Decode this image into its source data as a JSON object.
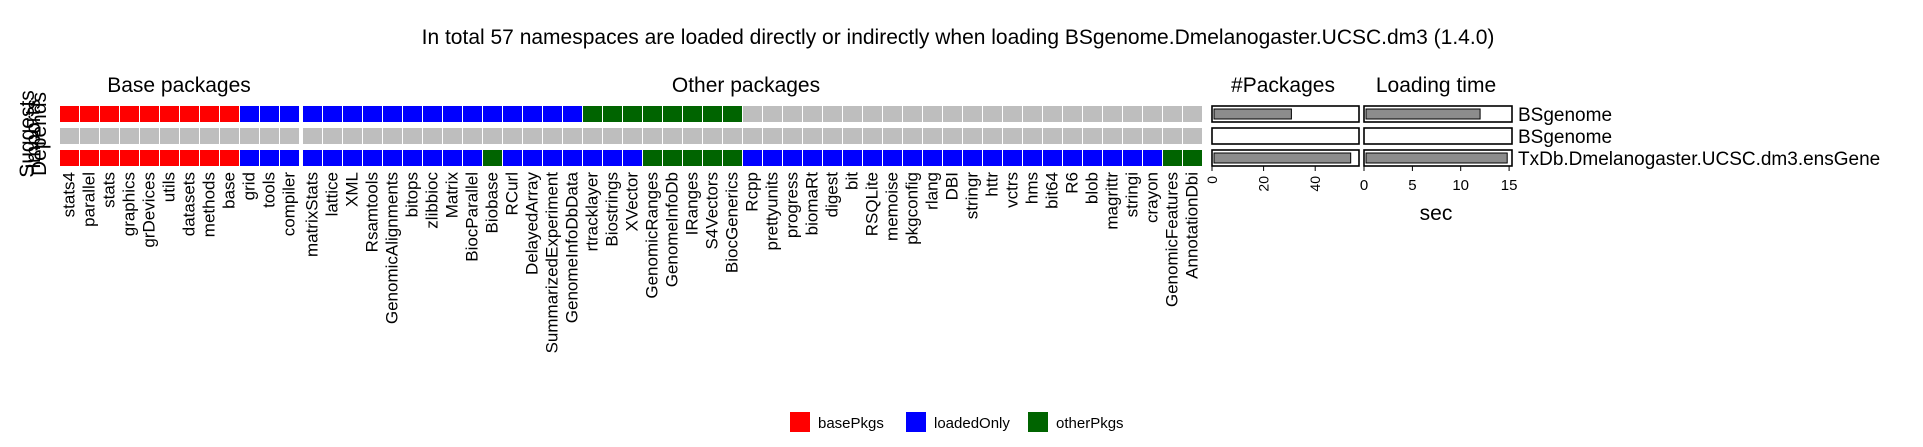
{
  "chart_data": {
    "type": "heatmap",
    "title": "In total 57 namespaces are loaded directly or indirectly when loading BSgenome.Dmelanogaster.UCSC.dm3 (1.4.0)",
    "row_labels": [
      "Depends",
      "Imports",
      "Suggests"
    ],
    "panels": {
      "base_title": "Base packages",
      "other_title": "Other packages",
      "count_title": "#Packages",
      "time_title": "Loading time"
    },
    "colors": {
      "basePkgs": "#ff0000",
      "loadedOnly": "#0000ff",
      "otherPkgs": "#006400",
      "none": "#bebebe"
    },
    "legend": {
      "position": "bottom",
      "entries": [
        {
          "key": "basePkgs",
          "label": "basePkgs"
        },
        {
          "key": "loadedOnly",
          "label": "loadedOnly"
        },
        {
          "key": "otherPkgs",
          "label": "otherPkgs"
        }
      ]
    },
    "base_packages": [
      "stats4",
      "parallel",
      "stats",
      "graphics",
      "grDevices",
      "utils",
      "datasets",
      "methods",
      "base",
      "grid",
      "tools",
      "compiler"
    ],
    "base_status": {
      "Depends": [
        "basePkgs",
        "basePkgs",
        "basePkgs",
        "basePkgs",
        "basePkgs",
        "basePkgs",
        "basePkgs",
        "basePkgs",
        "basePkgs",
        "loadedOnly",
        "loadedOnly",
        "loadedOnly"
      ],
      "Imports": [
        "none",
        "none",
        "none",
        "none",
        "none",
        "none",
        "none",
        "none",
        "none",
        "none",
        "none",
        "none"
      ],
      "Suggests": [
        "basePkgs",
        "basePkgs",
        "basePkgs",
        "basePkgs",
        "basePkgs",
        "basePkgs",
        "basePkgs",
        "basePkgs",
        "basePkgs",
        "loadedOnly",
        "loadedOnly",
        "loadedOnly"
      ]
    },
    "other_packages": [
      "matrixStats",
      "lattice",
      "XML",
      "Rsamtools",
      "GenomicAlignments",
      "bitops",
      "zlibbioc",
      "Matrix",
      "BiocParallel",
      "Biobase",
      "RCurl",
      "DelayedArray",
      "SummarizedExperiment",
      "GenomeInfoDbData",
      "rtracklayer",
      "Biostrings",
      "XVector",
      "GenomicRanges",
      "GenomeInfoDb",
      "IRanges",
      "S4Vectors",
      "BiocGenerics",
      "Rcpp",
      "prettyunits",
      "progress",
      "biomaRt",
      "digest",
      "bit",
      "RSQLite",
      "memoise",
      "pkgconfig",
      "rlang",
      "DBI",
      "stringr",
      "httr",
      "vctrs",
      "hms",
      "bit64",
      "R6",
      "blob",
      "magrittr",
      "stringi",
      "crayon",
      "GenomicFeatures",
      "AnnotationDbi"
    ],
    "other_status": {
      "Depends": [
        "loadedOnly",
        "loadedOnly",
        "loadedOnly",
        "loadedOnly",
        "loadedOnly",
        "loadedOnly",
        "loadedOnly",
        "loadedOnly",
        "loadedOnly",
        "loadedOnly",
        "loadedOnly",
        "loadedOnly",
        "loadedOnly",
        "loadedOnly",
        "otherPkgs",
        "otherPkgs",
        "otherPkgs",
        "otherPkgs",
        "otherPkgs",
        "otherPkgs",
        "otherPkgs",
        "otherPkgs",
        "none",
        "none",
        "none",
        "none",
        "none",
        "none",
        "none",
        "none",
        "none",
        "none",
        "none",
        "none",
        "none",
        "none",
        "none",
        "none",
        "none",
        "none",
        "none",
        "none",
        "none",
        "none",
        "none"
      ],
      "Imports": [
        "none",
        "none",
        "none",
        "none",
        "none",
        "none",
        "none",
        "none",
        "none",
        "none",
        "none",
        "none",
        "none",
        "none",
        "none",
        "none",
        "none",
        "none",
        "none",
        "none",
        "none",
        "none",
        "none",
        "none",
        "none",
        "none",
        "none",
        "none",
        "none",
        "none",
        "none",
        "none",
        "none",
        "none",
        "none",
        "none",
        "none",
        "none",
        "none",
        "none",
        "none",
        "none",
        "none",
        "none",
        "none"
      ],
      "Suggests": [
        "loadedOnly",
        "loadedOnly",
        "loadedOnly",
        "loadedOnly",
        "loadedOnly",
        "loadedOnly",
        "loadedOnly",
        "loadedOnly",
        "loadedOnly",
        "otherPkgs",
        "loadedOnly",
        "loadedOnly",
        "loadedOnly",
        "loadedOnly",
        "loadedOnly",
        "loadedOnly",
        "loadedOnly",
        "otherPkgs",
        "otherPkgs",
        "otherPkgs",
        "otherPkgs",
        "otherPkgs",
        "loadedOnly",
        "loadedOnly",
        "loadedOnly",
        "loadedOnly",
        "loadedOnly",
        "loadedOnly",
        "loadedOnly",
        "loadedOnly",
        "loadedOnly",
        "loadedOnly",
        "loadedOnly",
        "loadedOnly",
        "loadedOnly",
        "loadedOnly",
        "loadedOnly",
        "loadedOnly",
        "loadedOnly",
        "loadedOnly",
        "loadedOnly",
        "loadedOnly",
        "loadedOnly",
        "otherPkgs",
        "otherPkgs"
      ]
    },
    "bar_rows": [
      "BSgenome",
      "BSgenome",
      "TxDb.Dmelanogaster.UCSC.dm3.ensGene"
    ],
    "packages_count": {
      "values": [
        30,
        0,
        53
      ],
      "xlim": [
        0,
        57
      ],
      "ticks": [
        "0",
        "20",
        "40"
      ]
    },
    "loading_time": {
      "values": [
        11.8,
        0,
        14.6
      ],
      "xlim": [
        0,
        15.3
      ],
      "ticks": [
        "0",
        "5",
        "10",
        "15"
      ],
      "xlabel": "sec"
    }
  }
}
